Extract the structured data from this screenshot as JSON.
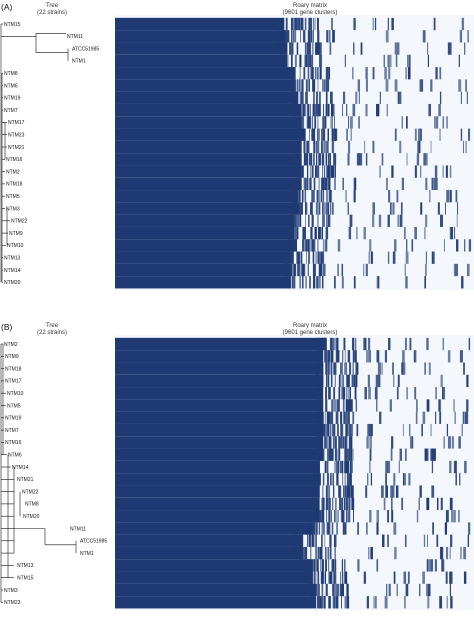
{
  "panels": [
    {
      "id": "a",
      "label": "(A)",
      "tree_title": [
        "Tree",
        "(22 strains)"
      ],
      "matrix_title": [
        "Roary matrix",
        "(9601 gene clusters)"
      ],
      "strains": [
        "NTM15",
        "NTM11",
        "ATCC51985",
        "NTM1",
        "NTM8",
        "NTM6",
        "NTM19",
        "NTM7",
        "NTM17",
        "NTM23",
        "NTM21",
        "NTM16",
        "NTM2",
        "NTM18",
        "NTM5",
        "NTM3",
        "NTM22",
        "NTM9",
        "NTM10",
        "NTM13",
        "NTM14",
        "NTM20"
      ]
    },
    {
      "id": "b",
      "label": "(B)",
      "tree_title": [
        "Tree",
        "(22 strains)"
      ],
      "matrix_title": [
        "Roary matrix",
        "(9601 gene clusters)"
      ],
      "strains": [
        "NTM2",
        "NTM9",
        "NTM18",
        "NTM17",
        "NTM10",
        "NTM5",
        "NTM19",
        "NTM7",
        "NTM16",
        "NTM6",
        "NTM14",
        "NTM21",
        "NTM22",
        "NTM8",
        "NTM20",
        "NTM11",
        "ATCC51985",
        "NTM1",
        "NTM13",
        "NTM15",
        "NTM3",
        "NTM23"
      ]
    }
  ],
  "colors": {
    "present": "#1f3a73",
    "absent": "#f4f8fd",
    "tree": "#111111"
  }
}
